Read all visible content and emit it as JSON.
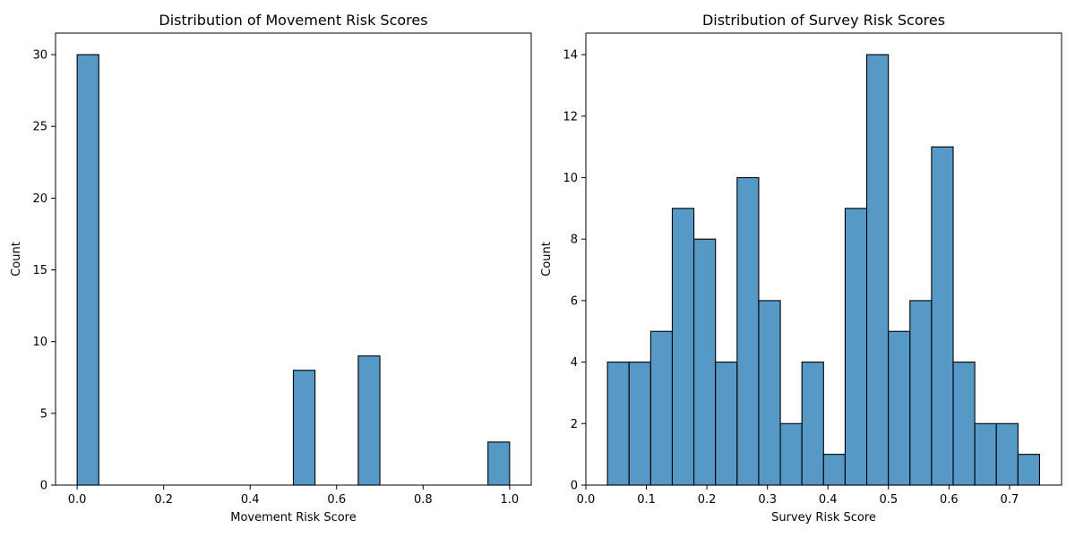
{
  "chart_data": [
    {
      "type": "bar",
      "title": "Distribution of Movement Risk Scores",
      "xlabel": "Movement Risk Score",
      "ylabel": "Count",
      "xlim": [
        -0.05,
        1.05
      ],
      "ylim": [
        0,
        31.5
      ],
      "xticks": [
        {
          "value": 0.0,
          "label": "0.0"
        },
        {
          "value": 0.2,
          "label": "0.2"
        },
        {
          "value": 0.4,
          "label": "0.4"
        },
        {
          "value": 0.6,
          "label": "0.6"
        },
        {
          "value": 0.8,
          "label": "0.8"
        },
        {
          "value": 1.0,
          "label": "1.0"
        }
      ],
      "yticks": [
        {
          "value": 0,
          "label": "0"
        },
        {
          "value": 5,
          "label": "5"
        },
        {
          "value": 10,
          "label": "10"
        },
        {
          "value": 15,
          "label": "15"
        },
        {
          "value": 20,
          "label": "20"
        },
        {
          "value": 25,
          "label": "25"
        },
        {
          "value": 30,
          "label": "30"
        }
      ],
      "bins": [
        {
          "x0": 0.0,
          "x1": 0.05,
          "count": 30
        },
        {
          "x0": 0.5,
          "x1": 0.55,
          "count": 8
        },
        {
          "x0": 0.65,
          "x1": 0.7,
          "count": 9
        },
        {
          "x0": 0.95,
          "x1": 1.0,
          "count": 3
        }
      ],
      "bar_color": "#5698c6",
      "edge_color": "#000000",
      "grid": false
    },
    {
      "type": "bar",
      "title": "Distribution of Survey Risk Scores",
      "xlabel": "Survey Risk Score",
      "ylabel": "Count",
      "xlim": [
        0.0,
        0.786
      ],
      "ylim": [
        0,
        14.7
      ],
      "xticks": [
        {
          "value": 0.0,
          "label": "0.0"
        },
        {
          "value": 0.1,
          "label": "0.1"
        },
        {
          "value": 0.2,
          "label": "0.2"
        },
        {
          "value": 0.3,
          "label": "0.3"
        },
        {
          "value": 0.4,
          "label": "0.4"
        },
        {
          "value": 0.5,
          "label": "0.5"
        },
        {
          "value": 0.6,
          "label": "0.6"
        },
        {
          "value": 0.7,
          "label": "0.7"
        }
      ],
      "yticks": [
        {
          "value": 0,
          "label": "0"
        },
        {
          "value": 2,
          "label": "2"
        },
        {
          "value": 4,
          "label": "4"
        },
        {
          "value": 6,
          "label": "6"
        },
        {
          "value": 8,
          "label": "8"
        },
        {
          "value": 10,
          "label": "10"
        },
        {
          "value": 12,
          "label": "12"
        },
        {
          "value": 14,
          "label": "14"
        }
      ],
      "bin_start": 0.0357,
      "bin_width": 0.0357,
      "counts": [
        4,
        4,
        5,
        9,
        8,
        4,
        10,
        6,
        2,
        4,
        1,
        9,
        14,
        5,
        6,
        11,
        4,
        2,
        2,
        1
      ],
      "bar_color": "#5698c6",
      "edge_color": "#000000",
      "grid": false
    }
  ]
}
